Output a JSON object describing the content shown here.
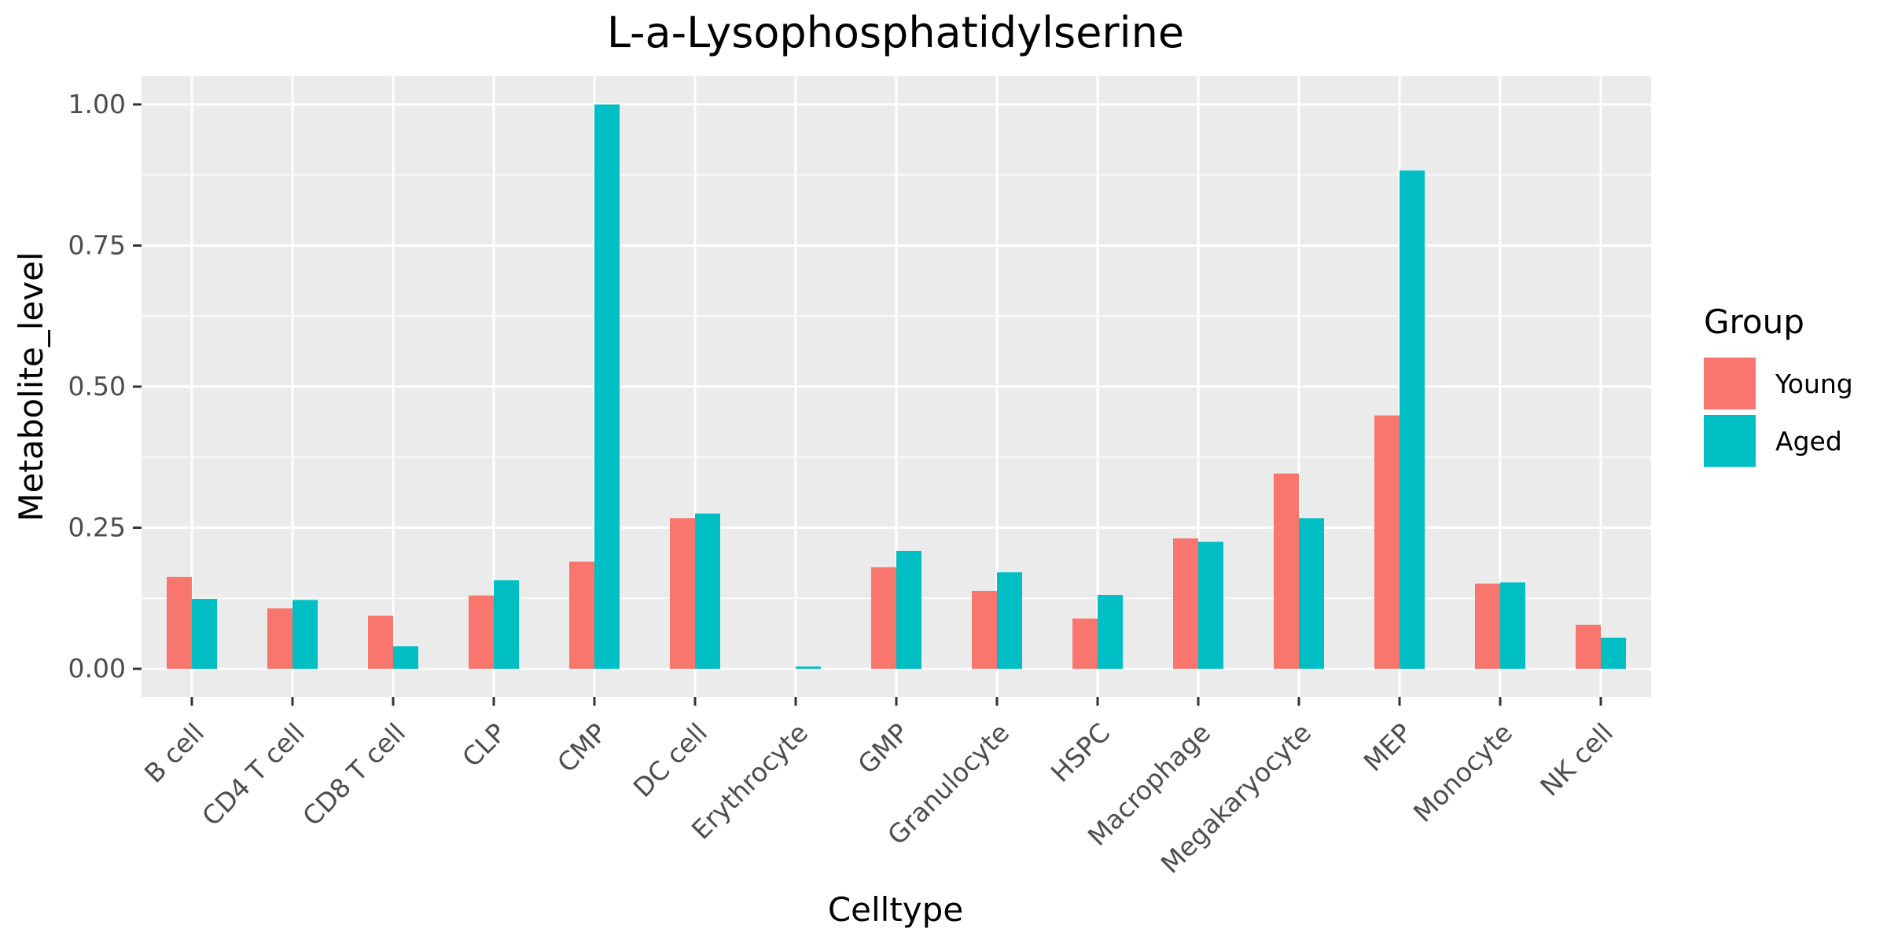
{
  "chart_data": {
    "type": "bar",
    "title": "L-a-Lysophosphatidylserine",
    "xlabel": "Celltype",
    "ylabel": "Metabolite_level",
    "ylim": [
      -0.05,
      1.05
    ],
    "yticks": [
      0.0,
      0.25,
      0.5,
      0.75,
      1.0
    ],
    "ytick_labels": [
      "0.00",
      "0.25",
      "0.50",
      "0.75",
      "1.00"
    ],
    "grid": true,
    "legend_title": "Group",
    "legend_position": "right",
    "categories": [
      "B cell",
      "CD4 T cell",
      "CD8 T cell",
      "CLP",
      "CMP",
      "DC cell",
      "Erythrocyte",
      "GMP",
      "Granulocyte",
      "HSPC",
      "Macrophage",
      "Megakaryocyte",
      "MEP",
      "Monocyte",
      "NK cell"
    ],
    "series": [
      {
        "name": "Young",
        "color": "#F8766D",
        "values": [
          0.163,
          0.107,
          0.094,
          0.13,
          0.19,
          0.267,
          0.0,
          0.18,
          0.138,
          0.089,
          0.231,
          0.346,
          0.449,
          0.151,
          0.078
        ]
      },
      {
        "name": "Aged",
        "color": "#00BFC4",
        "values": [
          0.124,
          0.122,
          0.04,
          0.157,
          1.0,
          0.275,
          0.004,
          0.209,
          0.171,
          0.131,
          0.225,
          0.267,
          0.883,
          0.153,
          0.055
        ]
      }
    ]
  }
}
